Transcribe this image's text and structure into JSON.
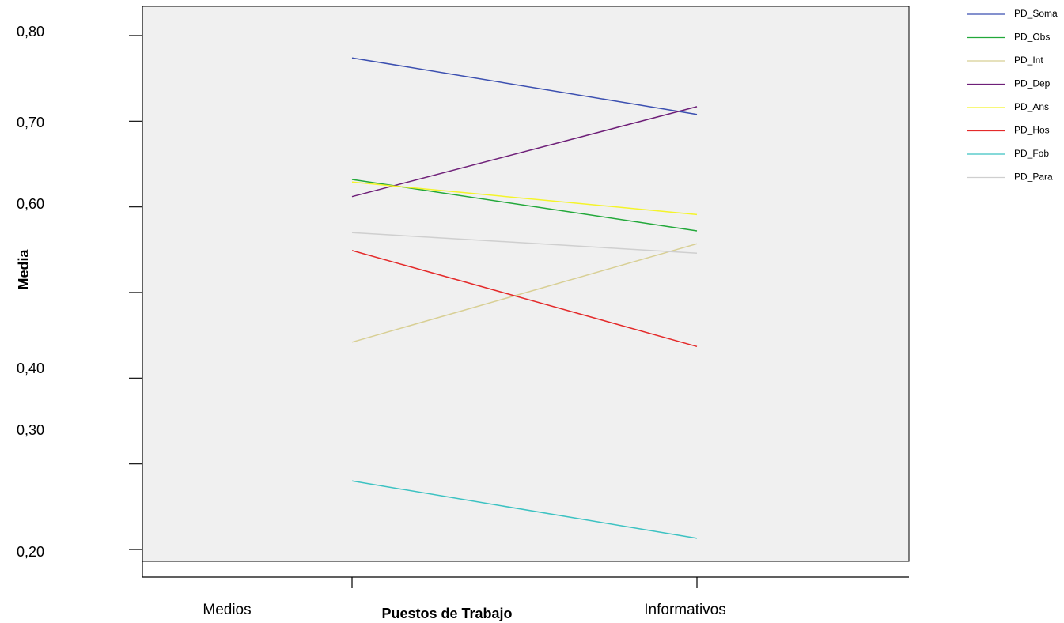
{
  "chart_data": {
    "type": "line",
    "title": "",
    "xlabel": "Puestos de Trabajo",
    "ylabel": "Media",
    "categories": [
      "Medios",
      "Informativos"
    ],
    "y_tick_labels": [
      "0,80",
      "0,70",
      "0,60",
      "0,40",
      "0,30",
      "0,20"
    ],
    "ylim": [
      0.2,
      0.8
    ],
    "grid": false,
    "legend_position": "top-right",
    "series": [
      {
        "name": "PD_Soma",
        "color": "#3b4fb0",
        "values": [
          0.774,
          0.708
        ]
      },
      {
        "name": "PD_Obs",
        "color": "#22a83a",
        "values": [
          0.632,
          0.572
        ]
      },
      {
        "name": "PD_Int",
        "color": "#d8cf94",
        "values": [
          0.442,
          0.557
        ]
      },
      {
        "name": "PD_Dep",
        "color": "#6e1f78",
        "values": [
          0.612,
          0.717
        ]
      },
      {
        "name": "PD_Ans",
        "color": "#f4f42a",
        "values": [
          0.629,
          0.591
        ]
      },
      {
        "name": "PD_Hos",
        "color": "#e42a2a",
        "values": [
          0.549,
          0.437
        ]
      },
      {
        "name": "PD_Fob",
        "color": "#3cc2c2",
        "values": [
          0.28,
          0.213
        ]
      },
      {
        "name": "PD_Para",
        "color": "#cfcfcf",
        "values": [
          0.57,
          0.546
        ]
      }
    ]
  }
}
